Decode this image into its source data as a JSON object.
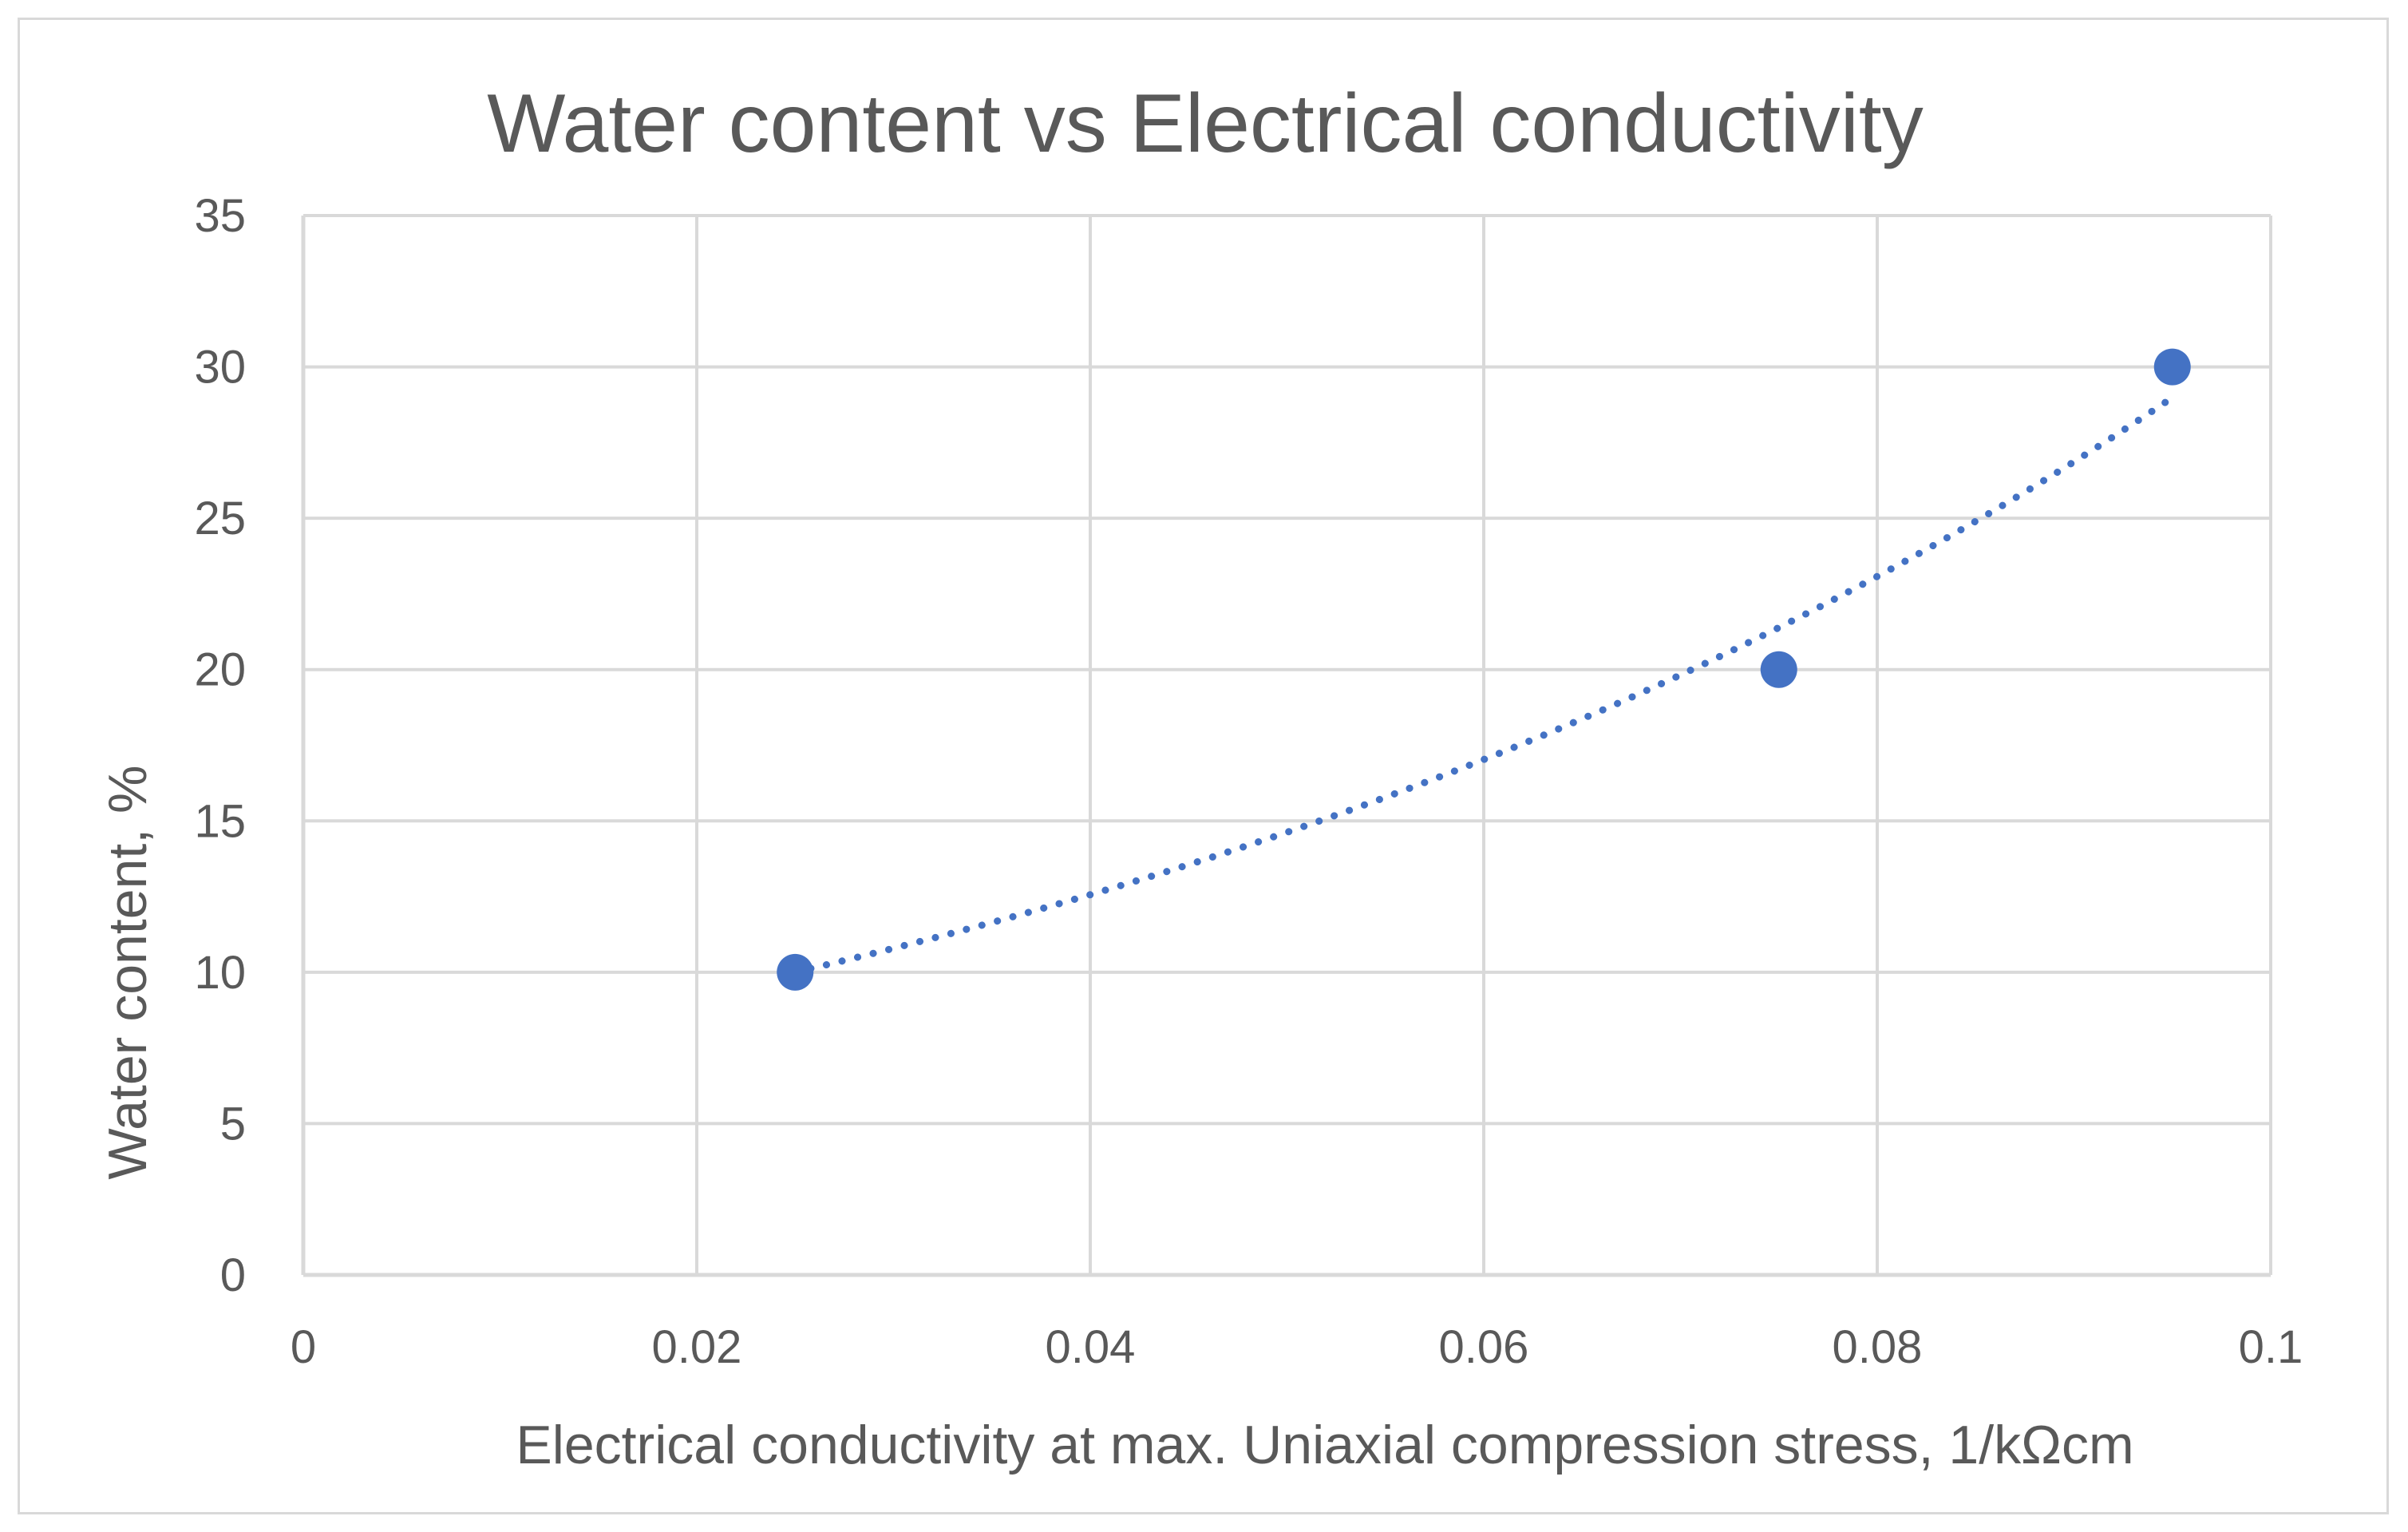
{
  "chart_data": {
    "type": "scatter",
    "title": "Water content vs Electrical conductivity",
    "xlabel": "Electrical conductivity at max. Uniaxial compression stress, 1/kΩcm",
    "ylabel": "Water content, %",
    "xlim": [
      0,
      0.1
    ],
    "ylim": [
      0,
      35
    ],
    "xticks": [
      0,
      0.02,
      0.04,
      0.06,
      0.08,
      0.1
    ],
    "xtick_labels": [
      "0",
      "0.02",
      "0.04",
      "0.06",
      "0.08",
      "0.1"
    ],
    "yticks": [
      0,
      5,
      10,
      15,
      20,
      25,
      30,
      35
    ],
    "ytick_labels": [
      "0",
      "5",
      "10",
      "15",
      "20",
      "25",
      "30",
      "35"
    ],
    "grid": true,
    "series": [
      {
        "name": "Water content",
        "x": [
          0.025,
          0.075,
          0.095
        ],
        "y": [
          10,
          20,
          30
        ],
        "color": "#4472c4"
      }
    ],
    "trendline": {
      "type": "exponential",
      "style": "dotted",
      "color": "#4472c4",
      "x_range": [
        0.025,
        0.095
      ],
      "a": 6.84,
      "b": 15.2
    }
  },
  "colors": {
    "grid": "#d9d9d9",
    "text": "#595959",
    "marker": "#4472c4"
  }
}
